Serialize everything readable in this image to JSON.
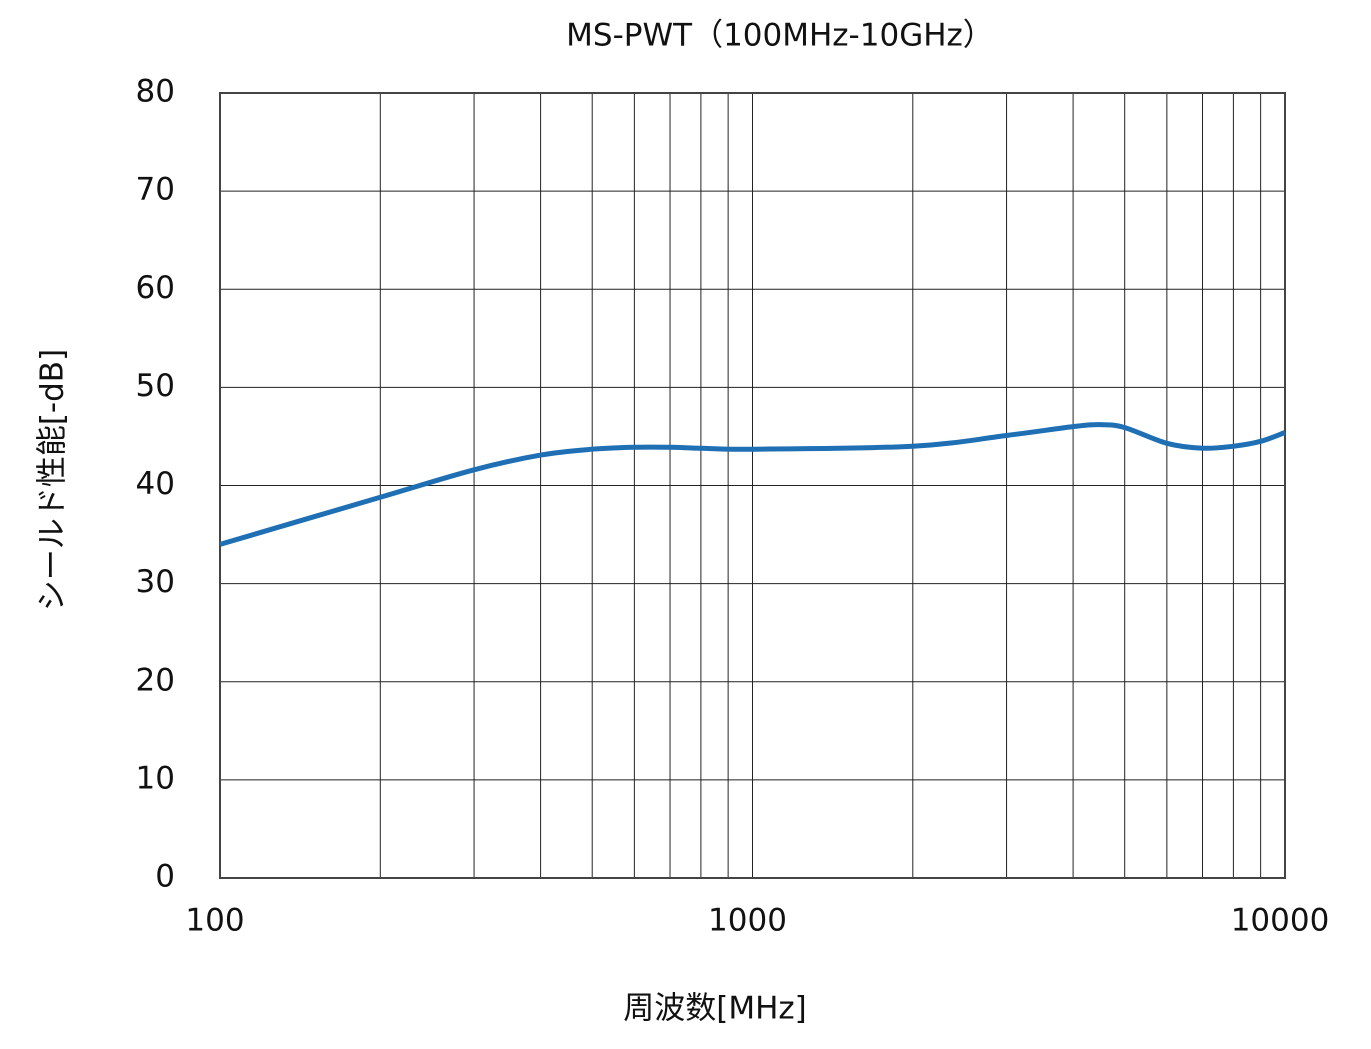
{
  "chart_data": {
    "type": "line",
    "title": "MS-PWT（100MHz-10GHz）",
    "x_label": "周波数[MHz]",
    "y_label": "シールド性能[-dB]",
    "x": [
      100,
      200,
      300,
      400,
      500,
      600,
      700,
      800,
      1000,
      2000,
      3000,
      4000,
      4500,
      5000,
      6000,
      7000,
      8000,
      9000,
      10000
    ],
    "series": [
      {
        "name": "MS-PWT",
        "color": "#1f6fb5",
        "values": [
          34.0,
          38.8,
          41.6,
          43.1,
          43.7,
          43.9,
          43.9,
          43.8,
          43.7,
          44.0,
          45.1,
          46.0,
          46.2,
          45.9,
          44.3,
          43.8,
          44.0,
          44.5,
          45.4
        ]
      }
    ],
    "xlim": [
      100,
      10000
    ],
    "xticks": [
      100,
      1000,
      10000
    ],
    "x_log": true,
    "x_minor_grid": [
      200,
      300,
      400,
      500,
      600,
      700,
      800,
      900,
      2000,
      3000,
      4000,
      5000,
      6000,
      7000,
      8000,
      9000
    ],
    "ylim": [
      0,
      80
    ],
    "yticks": [
      0,
      10,
      20,
      30,
      40,
      50,
      60,
      70,
      80
    ],
    "grid": true
  }
}
